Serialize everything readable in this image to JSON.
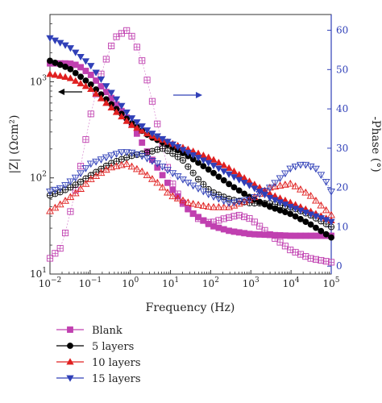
{
  "chart_data": {
    "type": "scatter",
    "x_scale": "log",
    "y_scale": "log",
    "xlabel": "Frequency (Hz)",
    "ylabel_left": "|Z| (Ωcm²)",
    "ylabel_right": "-Phase (°)",
    "xlim": [
      0.01,
      100000
    ],
    "ylim_left": [
      10,
      5000
    ],
    "ylim_right": [
      -2,
      64
    ],
    "x_ticks": [
      {
        "value": 0.01,
        "base": "10",
        "exp": "−2"
      },
      {
        "value": 0.1,
        "base": "10",
        "exp": "−1"
      },
      {
        "value": 1,
        "base": "10",
        "exp": "0"
      },
      {
        "value": 10,
        "base": "10",
        "exp": "1"
      },
      {
        "value": 100,
        "base": "10",
        "exp": "2"
      },
      {
        "value": 1000,
        "base": "10",
        "exp": "3"
      },
      {
        "value": 10000,
        "base": "10",
        "exp": "4"
      },
      {
        "value": 100000,
        "base": "10",
        "exp": "5"
      }
    ],
    "y_left_ticks": [
      {
        "value": 10,
        "base": "10",
        "exp": "1"
      },
      {
        "value": 100,
        "base": "10",
        "exp": "2"
      },
      {
        "value": 1000,
        "base": "10",
        "exp": "3"
      }
    ],
    "y_right_ticks": [
      0,
      10,
      20,
      30,
      40,
      50,
      60
    ],
    "legend_position": "below",
    "series": [
      {
        "name": "Blank",
        "color": "#c040b0",
        "marker": "square",
        "impedance": [
          [
            0.01,
            1550
          ],
          [
            0.03,
            1550
          ],
          [
            0.05,
            1480
          ],
          [
            0.1,
            1200
          ],
          [
            0.3,
            720
          ],
          [
            1,
            380
          ],
          [
            3,
            170
          ],
          [
            10,
            80
          ],
          [
            30,
            45
          ],
          [
            100,
            32
          ],
          [
            300,
            28
          ],
          [
            1000,
            26
          ],
          [
            10000,
            25
          ],
          [
            100000,
            25
          ]
        ],
        "phase": [
          [
            0.01,
            2
          ],
          [
            0.02,
            5
          ],
          [
            0.05,
            22
          ],
          [
            0.1,
            38
          ],
          [
            0.2,
            50
          ],
          [
            0.4,
            58
          ],
          [
            0.8,
            60
          ],
          [
            1.2,
            58
          ],
          [
            2,
            52
          ],
          [
            3,
            45
          ],
          [
            5,
            35
          ],
          [
            10,
            22
          ],
          [
            20,
            16
          ],
          [
            50,
            12
          ],
          [
            100,
            11
          ],
          [
            200,
            12
          ],
          [
            500,
            13
          ],
          [
            1000,
            12
          ],
          [
            3000,
            8
          ],
          [
            10000,
            4
          ],
          [
            30000,
            2
          ],
          [
            100000,
            1
          ]
        ]
      },
      {
        "name": "5 layers",
        "color": "#000000",
        "marker": "circle",
        "impedance": [
          [
            0.01,
            1650
          ],
          [
            0.03,
            1380
          ],
          [
            0.1,
            950
          ],
          [
            0.3,
            610
          ],
          [
            1,
            380
          ],
          [
            3,
            270
          ],
          [
            10,
            215
          ],
          [
            30,
            165
          ],
          [
            100,
            118
          ],
          [
            300,
            85
          ],
          [
            1000,
            62
          ],
          [
            3000,
            50
          ],
          [
            10000,
            42
          ],
          [
            30000,
            33
          ],
          [
            100000,
            24
          ]
        ],
        "phase": [
          [
            0.01,
            18
          ],
          [
            0.02,
            19
          ],
          [
            0.05,
            21
          ],
          [
            0.1,
            23
          ],
          [
            0.3,
            26
          ],
          [
            1,
            28
          ],
          [
            3,
            29
          ],
          [
            6,
            30
          ],
          [
            10,
            29
          ],
          [
            20,
            27
          ],
          [
            50,
            22
          ],
          [
            100,
            19
          ],
          [
            300,
            17
          ],
          [
            1000,
            16
          ],
          [
            3000,
            16
          ],
          [
            10000,
            15
          ],
          [
            30000,
            13
          ],
          [
            100000,
            10
          ]
        ]
      },
      {
        "name": "10 layers",
        "color": "#e02020",
        "marker": "triangle-up",
        "impedance": [
          [
            0.01,
            1200
          ],
          [
            0.03,
            1100
          ],
          [
            0.1,
            850
          ],
          [
            0.3,
            560
          ],
          [
            1,
            360
          ],
          [
            3,
            280
          ],
          [
            10,
            230
          ],
          [
            30,
            195
          ],
          [
            100,
            160
          ],
          [
            300,
            125
          ],
          [
            1000,
            90
          ],
          [
            3000,
            68
          ],
          [
            10000,
            55
          ],
          [
            30000,
            45
          ],
          [
            100000,
            36
          ]
        ],
        "phase": [
          [
            0.01,
            14
          ],
          [
            0.02,
            16
          ],
          [
            0.05,
            19
          ],
          [
            0.1,
            22
          ],
          [
            0.3,
            25
          ],
          [
            0.8,
            26
          ],
          [
            2,
            24
          ],
          [
            5,
            21
          ],
          [
            10,
            18
          ],
          [
            30,
            16
          ],
          [
            100,
            15
          ],
          [
            300,
            15
          ],
          [
            1000,
            17
          ],
          [
            3000,
            20
          ],
          [
            10000,
            21
          ],
          [
            30000,
            18
          ],
          [
            100000,
            13
          ]
        ]
      },
      {
        "name": "15 layers",
        "color": "#3040b8",
        "marker": "triangle-down",
        "impedance": [
          [
            0.01,
            2850
          ],
          [
            0.03,
            2300
          ],
          [
            0.1,
            1500
          ],
          [
            0.3,
            820
          ],
          [
            1,
            430
          ],
          [
            3,
            300
          ],
          [
            10,
            230
          ],
          [
            30,
            180
          ],
          [
            100,
            140
          ],
          [
            300,
            108
          ],
          [
            1000,
            82
          ],
          [
            3000,
            62
          ],
          [
            10000,
            50
          ],
          [
            30000,
            42
          ],
          [
            100000,
            35
          ]
        ],
        "phase": [
          [
            0.01,
            19
          ],
          [
            0.02,
            20
          ],
          [
            0.05,
            23
          ],
          [
            0.1,
            26
          ],
          [
            0.3,
            28
          ],
          [
            0.6,
            29
          ],
          [
            1,
            29
          ],
          [
            2,
            28
          ],
          [
            5,
            26
          ],
          [
            10,
            24
          ],
          [
            30,
            21
          ],
          [
            100,
            18
          ],
          [
            300,
            16
          ],
          [
            1000,
            17
          ],
          [
            3000,
            20
          ],
          [
            10000,
            25
          ],
          [
            20000,
            26
          ],
          [
            40000,
            25
          ],
          [
            70000,
            22
          ],
          [
            100000,
            19
          ]
        ]
      }
    ]
  }
}
